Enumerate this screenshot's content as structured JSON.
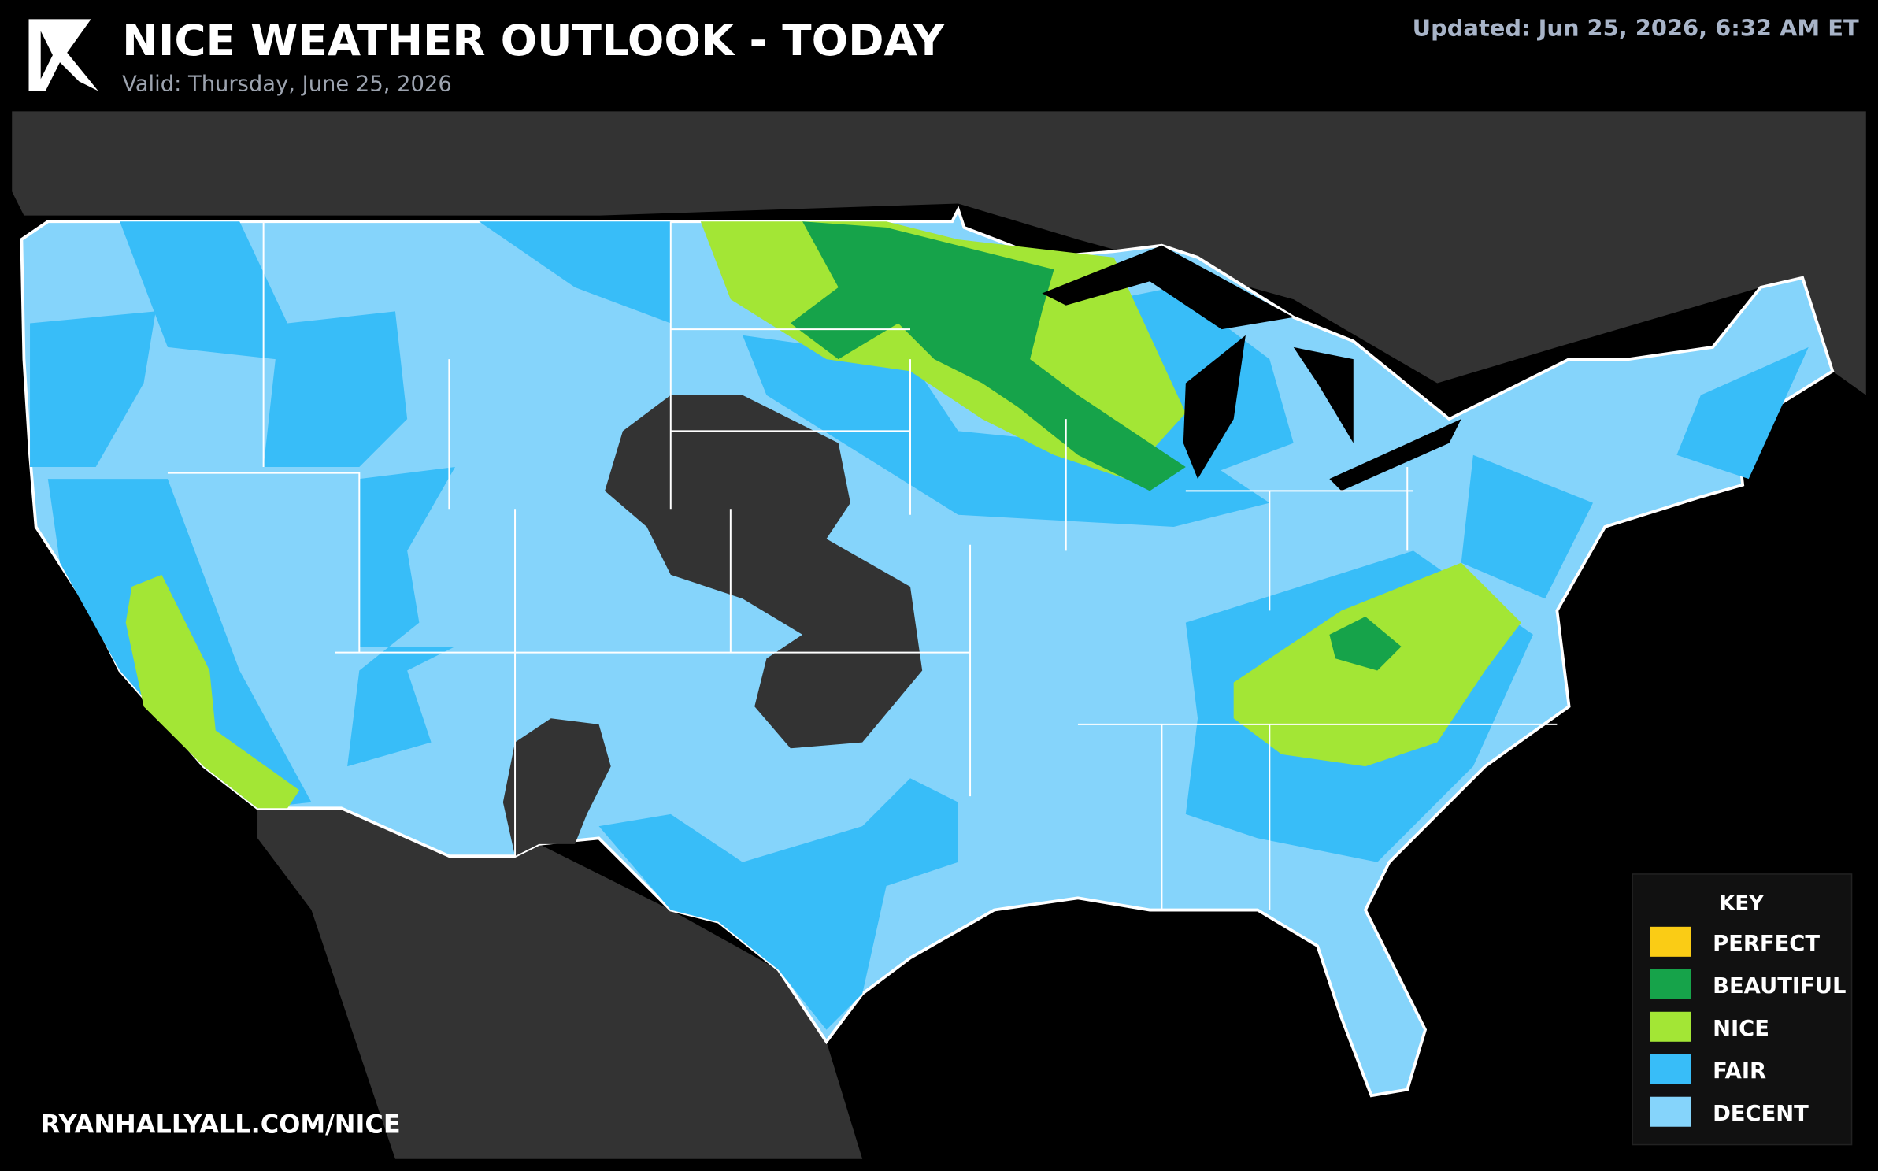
{
  "header": {
    "title": "NICE WEATHER OUTLOOK - TODAY",
    "valid": "Valid: Thursday, June 25, 2026",
    "updated": "Updated: Jun 25, 2026, 6:32 AM ET"
  },
  "legend": {
    "title": "KEY",
    "items": [
      {
        "label": "PERFECT",
        "color": "#facc15"
      },
      {
        "label": "BEAUTIFUL",
        "color": "#16a34a"
      },
      {
        "label": "NICE",
        "color": "#a3e635"
      },
      {
        "label": "FAIR",
        "color": "#38bdf8"
      },
      {
        "label": "DECENT",
        "color": "#85d4fb"
      }
    ]
  },
  "footer": {
    "url": "RYANHALLYALL.COM/NICE"
  }
}
